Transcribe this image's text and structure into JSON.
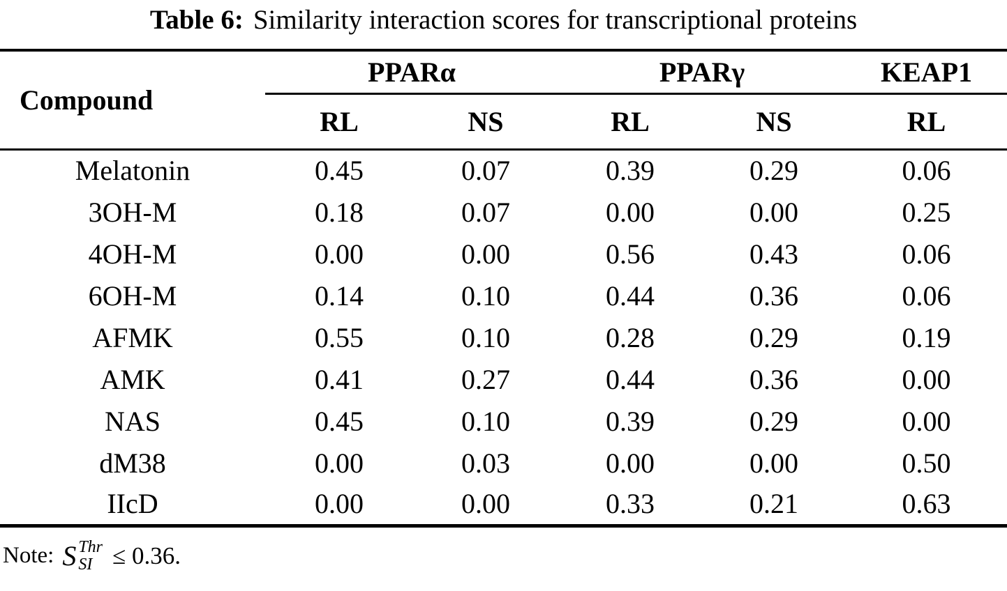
{
  "caption": {
    "label": "Table 6:",
    "text": "Similarity interaction scores for transcriptional proteins"
  },
  "table": {
    "compound_header": "Compound",
    "groups": [
      {
        "label": "PPARα"
      },
      {
        "label": "PPARγ"
      },
      {
        "label": "KEAP1"
      }
    ],
    "subheaders": [
      "RL",
      "NS",
      "RL",
      "NS",
      "RL"
    ],
    "rows": [
      {
        "compound": "Melatonin",
        "values": [
          "0.45",
          "0.07",
          "0.39",
          "0.29",
          "0.06"
        ]
      },
      {
        "compound": "3OH-M",
        "values": [
          "0.18",
          "0.07",
          "0.00",
          "0.00",
          "0.25"
        ]
      },
      {
        "compound": "4OH-M",
        "values": [
          "0.00",
          "0.00",
          "0.56",
          "0.43",
          "0.06"
        ]
      },
      {
        "compound": "6OH-M",
        "values": [
          "0.14",
          "0.10",
          "0.44",
          "0.36",
          "0.06"
        ]
      },
      {
        "compound": "AFMK",
        "values": [
          "0.55",
          "0.10",
          "0.28",
          "0.29",
          "0.19"
        ]
      },
      {
        "compound": "AMK",
        "values": [
          "0.41",
          "0.27",
          "0.44",
          "0.36",
          "0.00"
        ]
      },
      {
        "compound": "NAS",
        "values": [
          "0.45",
          "0.10",
          "0.39",
          "0.29",
          "0.00"
        ]
      },
      {
        "compound": "dM38",
        "values": [
          "0.00",
          "0.03",
          "0.00",
          "0.00",
          "0.50"
        ]
      },
      {
        "compound": "IIcD",
        "values": [
          "0.00",
          "0.00",
          "0.33",
          "0.21",
          "0.63"
        ]
      }
    ]
  },
  "note": {
    "prefix": "Note:",
    "symbol_base": "S",
    "symbol_sup": "Thr",
    "symbol_sub": "SI",
    "relation_value": "≤ 0.36."
  },
  "colors": {
    "text": "#000000",
    "background": "#ffffff",
    "rule": "#000000"
  }
}
